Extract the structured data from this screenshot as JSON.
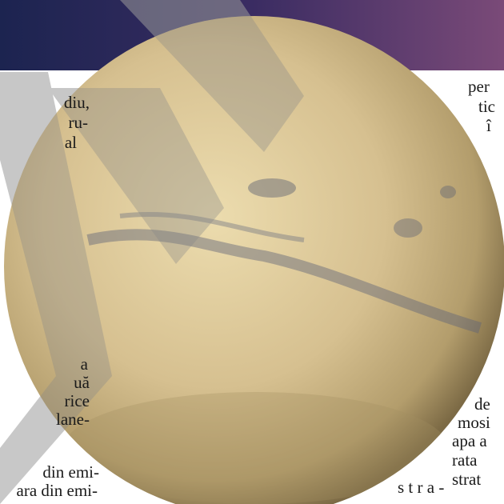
{
  "left_column": {
    "lines": [
      "diu,",
      "ru-",
      "al",
      "a",
      "uă",
      "rice",
      "lane-",
      "din emi-",
      "ara din emi-"
    ]
  },
  "right_column": {
    "lines": [
      "per",
      "tic",
      "î",
      "de",
      "mosi",
      "apa a",
      "rata",
      "strat"
    ]
  },
  "center_fragment": "s t r a -"
}
